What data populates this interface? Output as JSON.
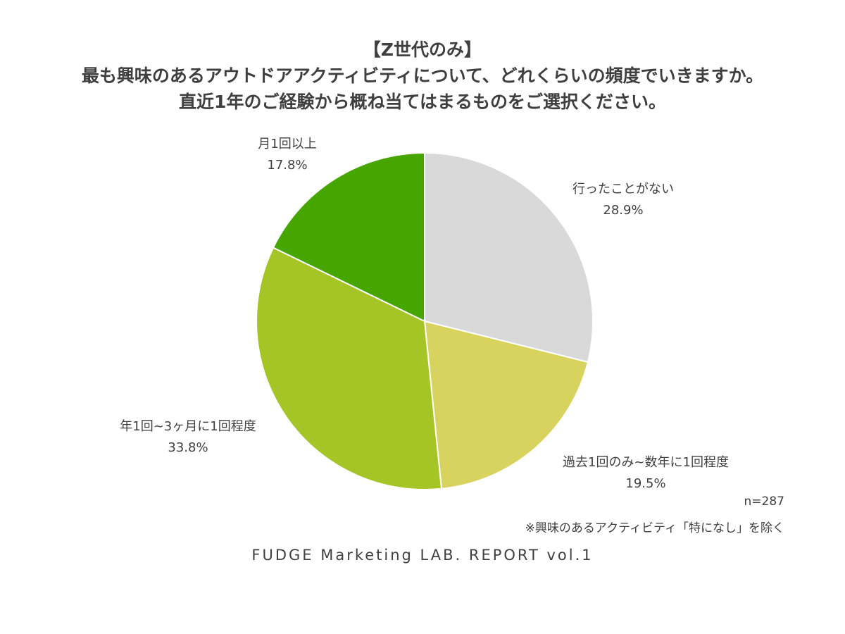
{
  "chart_data": {
    "type": "pie",
    "title": [
      "【Z世代のみ】",
      "最も興味のあるアウトドアアクティビティについて、どれくらいの頻度でいきますか。",
      "直近1年のご経験から概ね当てはまるものをご選択ください。"
    ],
    "slices": [
      {
        "label": "行ったことがない",
        "value": 28.9,
        "value_label": "28.9%",
        "color": "#d9d9d9"
      },
      {
        "label": "過去1回のみ~数年に1回程度",
        "value": 19.5,
        "value_label": "19.5%",
        "color": "#d8d35e"
      },
      {
        "label": "年1回~3ヶ月に1回程度",
        "value": 33.8,
        "value_label": "33.8%",
        "color": "#a5c527"
      },
      {
        "label": "月1回以上",
        "value": 17.8,
        "value_label": "17.8%",
        "color": "#47a500"
      }
    ],
    "start": "12 o'clock",
    "direction": "clockwise"
  },
  "notes": {
    "sample_size": "n=287",
    "exclusion": "※興味のあるアクティビティ「特になし」を除く"
  },
  "footer": "FUDGE Marketing LAB. REPORT vol.1"
}
